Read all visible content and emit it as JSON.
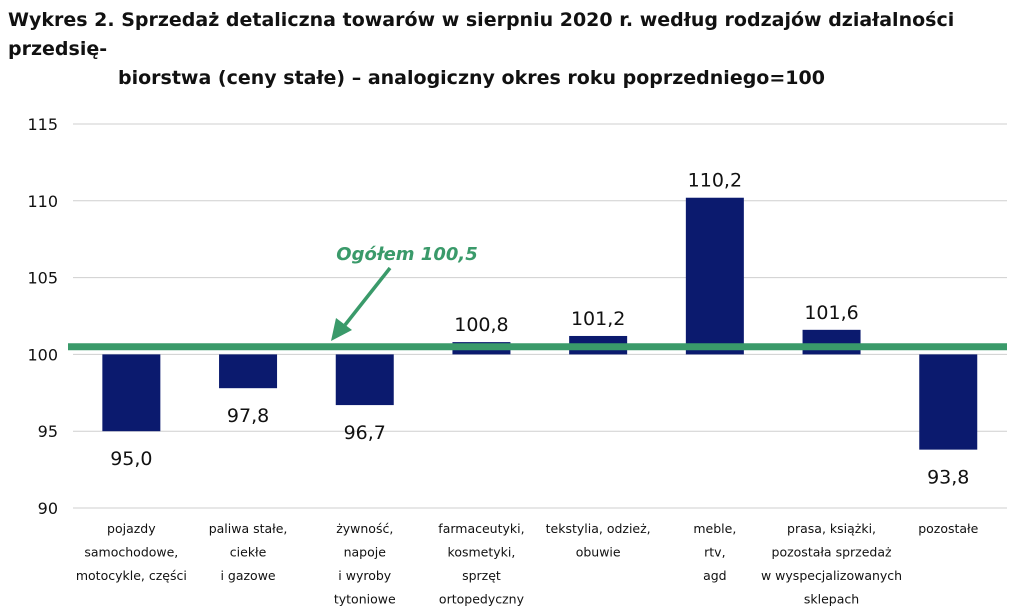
{
  "title": {
    "line1": "Wykres 2. Sprzedaż detaliczna towarów w sierpniu 2020 r. według rodzajów działalności przedsię-",
    "line2": "biorstwa (ceny stałe) – analogiczny okres roku poprzedniego=100"
  },
  "chart_data": {
    "type": "bar",
    "baseline": 100,
    "ylim": [
      90,
      115
    ],
    "yticks": [
      90,
      95,
      100,
      105,
      110,
      115
    ],
    "ytick_labels": [
      "90",
      "95",
      "100",
      "105",
      "110",
      "115"
    ],
    "grid": true,
    "categories": [
      [
        "pojazdy",
        "samochodowe,",
        "motocykle, części"
      ],
      [
        "paliwa stałe,",
        "ciekłe",
        "i gazowe"
      ],
      [
        "żywność,",
        "napoje",
        "i wyroby",
        "tytoniowe"
      ],
      [
        "farmaceutyki,",
        "kosmetyki,",
        "sprzęt",
        "ortopedyczny"
      ],
      [
        "tekstylia, odzież,",
        "obuwie"
      ],
      [
        "meble,",
        "rtv,",
        "agd"
      ],
      [
        "prasa, książki,",
        "pozostała sprzedaż",
        "w wyspecjalizowanych",
        "sklepach"
      ],
      [
        "pozostałe"
      ]
    ],
    "values": [
      95.0,
      97.8,
      96.7,
      100.8,
      101.2,
      110.2,
      101.6,
      93.8
    ],
    "value_labels": [
      "95,0",
      "97,8",
      "96,7",
      "100,8",
      "101,2",
      "110,2",
      "101,6",
      "93,8"
    ],
    "reference_line": {
      "value": 100.5,
      "label": "Ogółem 100,5"
    },
    "colors": {
      "bar": "#0b1a6e",
      "reference": "#3a9a6a",
      "grid": "#cfcfcf"
    }
  }
}
